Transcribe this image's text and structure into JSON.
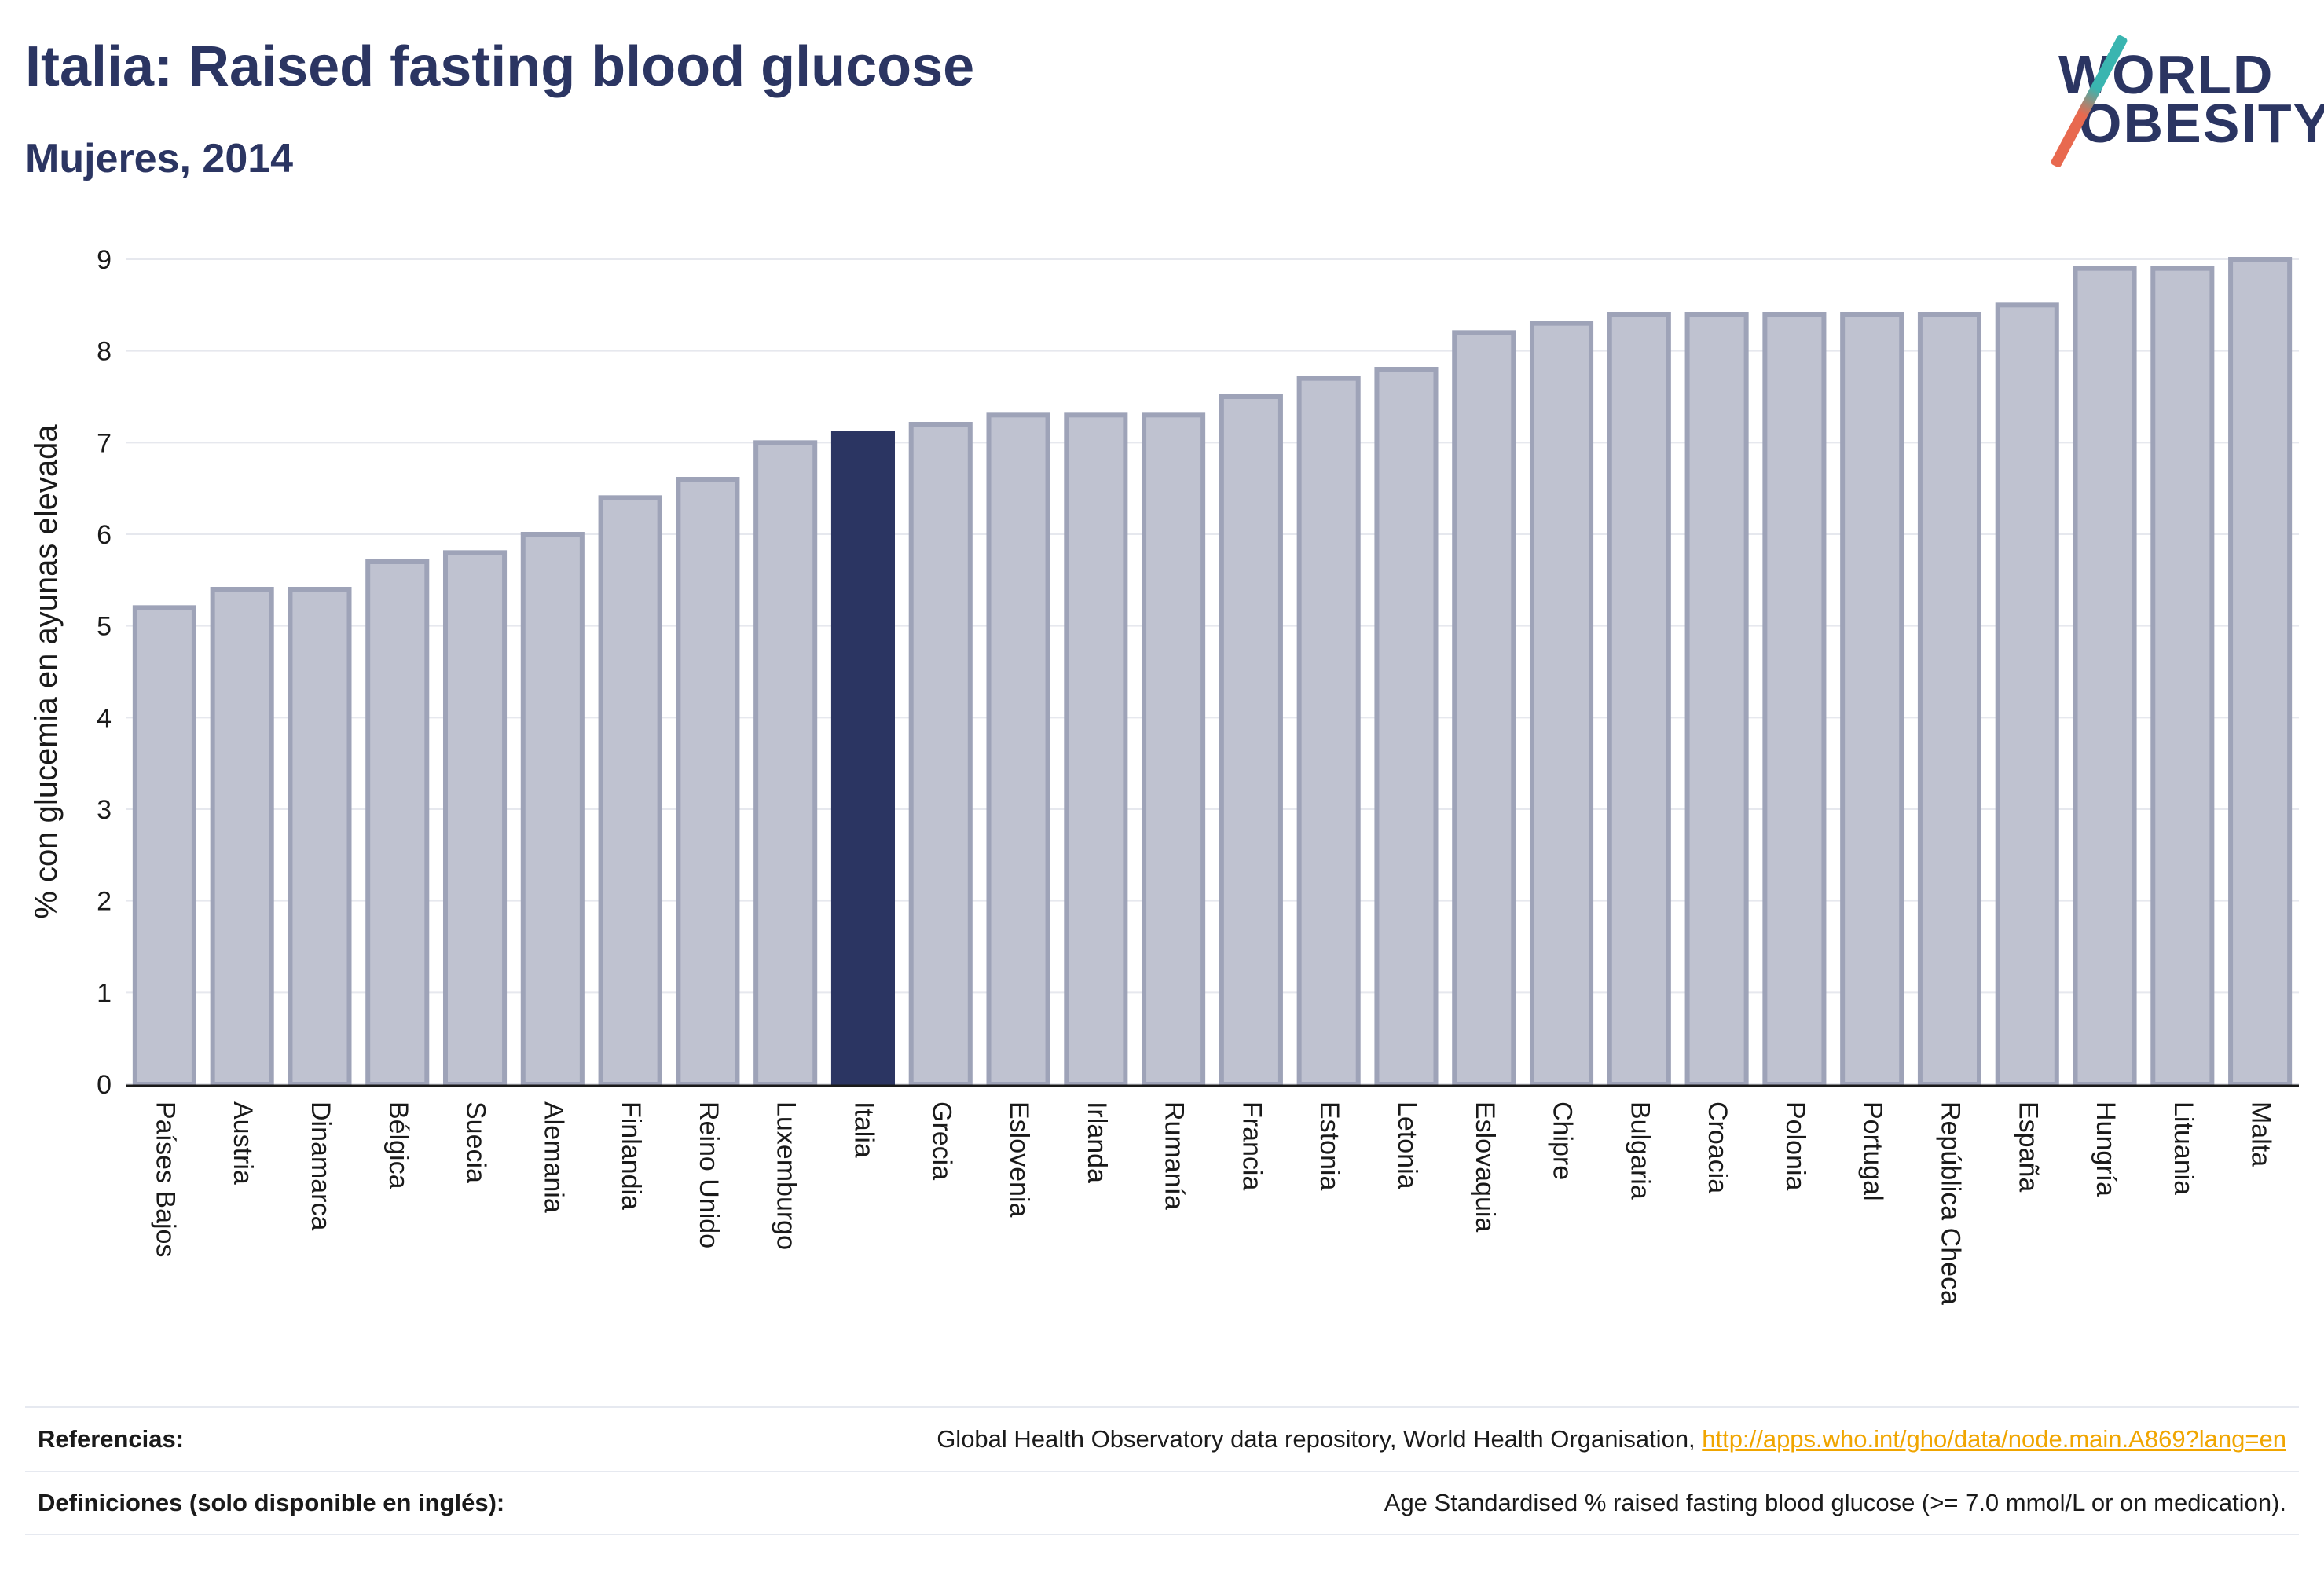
{
  "header": {
    "title": "Italia: Raised fasting blood glucose",
    "subtitle": "Mujeres, 2014"
  },
  "logo": {
    "line1": "WORLD",
    "line2": "OBESITY"
  },
  "colors": {
    "bar": "#bfc2d0",
    "bar_stroke": "#9ea3b8",
    "highlight": "#2b3562",
    "grid": "#e6e8ee",
    "title": "#2b3562"
  },
  "chart_data": {
    "type": "bar",
    "title": "",
    "xlabel": "",
    "ylabel": "% con glucemia en ayunas elevada",
    "ylim": [
      0,
      9
    ],
    "yticks": [
      0,
      1,
      2,
      3,
      4,
      5,
      6,
      7,
      8,
      9
    ],
    "grid": true,
    "highlight": "Italia",
    "categories": [
      "Países Bajos",
      "Austria",
      "Dinamarca",
      "Bélgica",
      "Suecia",
      "Alemania",
      "Finlandia",
      "Reino Unido",
      "Luxemburgo",
      "Italia",
      "Grecia",
      "Eslovenia",
      "Irlanda",
      "Rumanía",
      "Francia",
      "Estonia",
      "Letonia",
      "Eslovaquia",
      "Chipre",
      "Bulgaria",
      "Croacia",
      "Polonia",
      "Portugal",
      "República Checa",
      "España",
      "Hungría",
      "Lituania",
      "Malta"
    ],
    "values": [
      5.2,
      5.4,
      5.4,
      5.7,
      5.8,
      6.0,
      6.4,
      6.6,
      7.0,
      7.1,
      7.2,
      7.3,
      7.3,
      7.3,
      7.5,
      7.7,
      7.8,
      8.2,
      8.3,
      8.4,
      8.4,
      8.4,
      8.4,
      8.4,
      8.5,
      8.9,
      8.9,
      9.0
    ]
  },
  "footer": {
    "references_label": "Referencias:",
    "references_text": "Global Health Observatory data repository, World Health Organisation, ",
    "references_link": "http://apps.who.int/gho/data/node.main.A869?lang=en",
    "definitions_label": "Definiciones (solo disponible en inglés):",
    "definitions_text": "Age Standardised % raised fasting blood glucose (>= 7.0 mmol/L or on medication)."
  }
}
